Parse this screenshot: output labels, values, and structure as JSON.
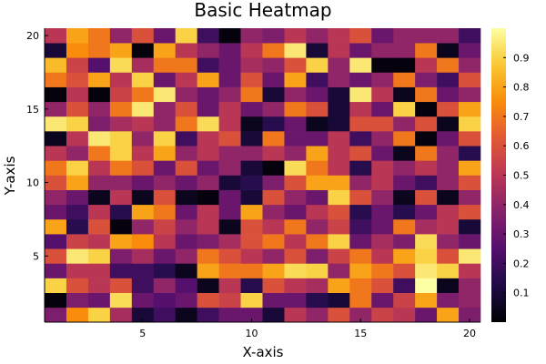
{
  "chart_data": {
    "type": "heatmap",
    "title": "Basic Heatmap",
    "xlabel": "X-axis",
    "ylabel": "Y-axis",
    "xlim": [
      0.5,
      20.5
    ],
    "ylim": [
      0.5,
      20.5
    ],
    "x_ticks": [
      5,
      10,
      15,
      20
    ],
    "y_ticks": [
      5,
      10,
      15,
      20
    ],
    "color_range": [
      0,
      1
    ],
    "colorbar_ticks": [
      0.1,
      0.2,
      0.3,
      0.4,
      0.5,
      0.6,
      0.7,
      0.8,
      0.9
    ],
    "colormap": "inferno",
    "grid": false,
    "legend": "colorbar-right",
    "x": [
      1,
      2,
      3,
      4,
      5,
      6,
      7,
      8,
      9,
      10,
      11,
      12,
      13,
      14,
      15,
      16,
      17,
      18,
      19,
      20
    ],
    "y": [
      1,
      2,
      3,
      4,
      5,
      6,
      7,
      8,
      9,
      10,
      11,
      12,
      13,
      14,
      15,
      16,
      17,
      18,
      19,
      20
    ],
    "rows": [
      [
        0.35,
        0.75,
        0.9,
        0.45,
        0.1,
        0.2,
        0.05,
        0.2,
        0.3,
        0.3,
        0.1,
        0.5,
        0.4,
        0.6,
        0.4,
        0.55,
        0.5,
        0.3,
        0.8,
        0.35
      ],
      [
        0.02,
        0.35,
        0.3,
        0.92,
        0.3,
        0.25,
        0.3,
        0.6,
        0.55,
        0.9,
        0.3,
        0.3,
        0.15,
        0.1,
        0.7,
        0.3,
        0.55,
        0.8,
        0.35,
        0.4
      ],
      [
        0.9,
        0.6,
        0.5,
        0.6,
        0.2,
        0.4,
        0.25,
        0.05,
        0.5,
        0.15,
        0.6,
        0.5,
        0.45,
        0.8,
        0.7,
        0.6,
        0.2,
        1.0,
        0.05,
        0.4
      ],
      [
        0.3,
        0.5,
        0.5,
        0.2,
        0.2,
        0.15,
        0.05,
        0.8,
        0.7,
        0.7,
        0.8,
        0.92,
        0.9,
        0.4,
        0.8,
        0.7,
        0.6,
        0.95,
        0.9,
        0.5
      ],
      [
        0.6,
        0.95,
        0.9,
        0.35,
        0.45,
        0.3,
        0.4,
        0.7,
        0.6,
        0.5,
        0.4,
        0.6,
        0.35,
        0.55,
        0.7,
        0.5,
        0.8,
        0.9,
        0.6,
        0.95
      ],
      [
        0.25,
        0.55,
        0.5,
        0.8,
        0.75,
        0.5,
        0.3,
        0.35,
        0.45,
        0.6,
        0.7,
        0.5,
        0.7,
        0.9,
        0.3,
        0.45,
        0.35,
        0.92,
        0.4,
        0.3
      ],
      [
        0.8,
        0.15,
        0.6,
        0.02,
        0.4,
        0.55,
        0.4,
        0.5,
        0.05,
        0.6,
        0.5,
        0.7,
        0.4,
        0.55,
        0.2,
        0.3,
        0.7,
        0.45,
        0.5,
        0.1
      ],
      [
        0.3,
        0.2,
        0.5,
        0.15,
        0.8,
        0.7,
        0.3,
        0.5,
        0.3,
        0.8,
        0.4,
        0.3,
        0.5,
        0.6,
        0.15,
        0.3,
        0.15,
        0.3,
        0.5,
        0.6
      ],
      [
        0.4,
        0.3,
        0.05,
        0.5,
        0.05,
        0.6,
        0.05,
        0.02,
        0.3,
        0.1,
        0.6,
        0.4,
        0.3,
        0.9,
        0.6,
        0.4,
        0.05,
        0.6,
        0.05,
        0.4
      ],
      [
        0.6,
        0.8,
        0.4,
        0.4,
        0.3,
        0.4,
        0.3,
        0.4,
        0.1,
        0.15,
        0.35,
        0.6,
        0.8,
        0.8,
        0.4,
        0.5,
        0.3,
        0.2,
        0.4,
        0.6
      ],
      [
        0.7,
        0.9,
        0.5,
        0.7,
        0.6,
        0.3,
        0.6,
        0.3,
        0.4,
        0.1,
        0.02,
        0.92,
        0.7,
        0.5,
        0.15,
        0.5,
        0.4,
        0.5,
        0.4,
        0.8
      ],
      [
        0.5,
        0.4,
        0.7,
        0.9,
        0.5,
        0.8,
        0.4,
        0.5,
        0.4,
        0.4,
        0.5,
        0.4,
        0.8,
        0.5,
        0.6,
        0.3,
        0.05,
        0.7,
        0.4,
        0.15
      ],
      [
        0.05,
        0.5,
        0.95,
        0.9,
        0.4,
        0.9,
        0.2,
        0.5,
        0.6,
        0.1,
        0.7,
        0.3,
        0.3,
        0.5,
        0.2,
        0.4,
        0.7,
        0.02,
        0.3,
        0.6
      ],
      [
        0.95,
        0.9,
        0.35,
        0.45,
        0.5,
        0.4,
        0.7,
        0.92,
        0.5,
        0.05,
        0.15,
        0.3,
        0.05,
        0.1,
        0.6,
        0.6,
        0.4,
        0.6,
        0.05,
        0.9
      ],
      [
        0.4,
        0.6,
        0.4,
        0.7,
        0.95,
        0.4,
        0.6,
        0.3,
        0.5,
        0.3,
        0.4,
        0.7,
        0.6,
        0.1,
        0.5,
        0.3,
        0.9,
        0.02,
        0.6,
        0.8
      ],
      [
        0.02,
        0.5,
        0.02,
        0.55,
        0.7,
        0.95,
        0.4,
        0.3,
        0.4,
        0.7,
        0.1,
        0.4,
        0.3,
        0.1,
        0.95,
        0.5,
        0.05,
        0.7,
        0.3,
        0.4
      ],
      [
        0.7,
        0.6,
        0.8,
        0.5,
        0.9,
        0.3,
        0.5,
        0.8,
        0.3,
        0.6,
        0.3,
        0.8,
        0.2,
        0.4,
        0.3,
        0.4,
        0.7,
        0.35,
        0.2,
        0.6
      ],
      [
        0.85,
        0.55,
        0.25,
        0.92,
        0.45,
        0.7,
        0.7,
        0.2,
        0.3,
        0.45,
        0.4,
        0.6,
        0.9,
        0.4,
        0.95,
        0.02,
        0.02,
        0.5,
        0.7,
        0.4
      ],
      [
        0.1,
        0.75,
        0.7,
        0.8,
        0.02,
        0.8,
        0.5,
        0.4,
        0.3,
        0.5,
        0.7,
        0.95,
        0.1,
        0.5,
        0.3,
        0.4,
        0.4,
        0.7,
        0.05,
        0.3
      ],
      [
        0.5,
        0.8,
        0.7,
        0.4,
        0.6,
        0.3,
        0.9,
        0.2,
        0.02,
        0.4,
        0.35,
        0.5,
        0.4,
        0.5,
        0.6,
        0.3,
        0.4,
        0.4,
        0.4,
        0.2
      ]
    ]
  }
}
